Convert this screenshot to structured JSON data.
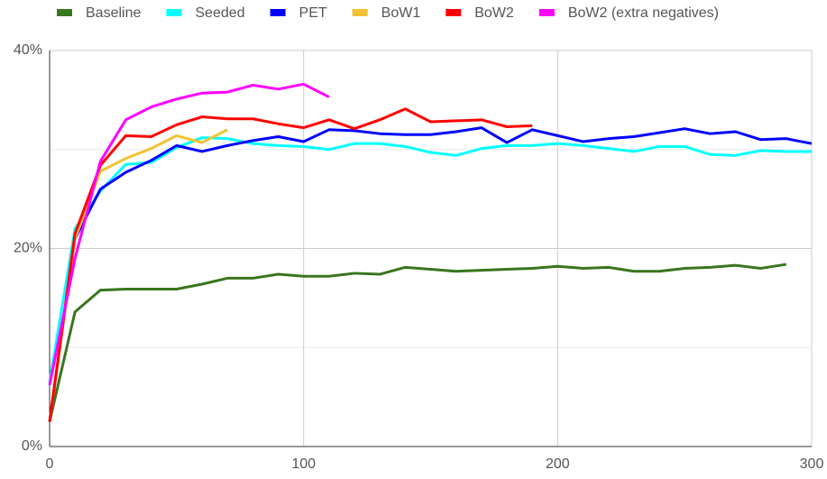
{
  "chart_data": {
    "type": "line",
    "x": [
      0,
      10,
      20,
      30,
      40,
      50,
      60,
      70,
      80,
      90,
      100,
      110,
      120,
      130,
      140,
      150,
      160,
      170,
      180,
      190,
      200,
      210,
      220,
      230,
      240,
      250,
      260,
      270,
      280,
      290,
      300
    ],
    "series": [
      {
        "name": "Baseline",
        "color": "#38761d",
        "values": [
          2.5,
          13.6,
          15.8,
          15.9,
          15.9,
          15.9,
          16.4,
          17.0,
          17.0,
          17.4,
          17.2,
          17.2,
          17.5,
          17.4,
          18.1,
          17.9,
          17.7,
          17.8,
          17.9,
          18.0,
          18.2,
          18.0,
          18.1,
          17.7,
          17.7,
          18.0,
          18.1,
          18.3,
          18.0,
          18.4,
          null
        ]
      },
      {
        "name": "Seeded",
        "color": "#00ffff",
        "values": [
          6.5,
          22.0,
          25.8,
          28.5,
          28.7,
          30.2,
          31.2,
          31.1,
          30.6,
          30.4,
          30.3,
          30.0,
          30.6,
          30.6,
          30.3,
          29.7,
          29.4,
          30.1,
          30.4,
          30.4,
          30.6,
          30.4,
          30.1,
          29.8,
          30.3,
          30.3,
          29.5,
          29.4,
          29.9,
          29.8,
          29.8
        ]
      },
      {
        "name": "PET",
        "color": "#0000ff",
        "values": [
          2.5,
          21.0,
          26.0,
          27.7,
          28.9,
          30.4,
          29.8,
          30.4,
          30.9,
          31.3,
          30.8,
          32.0,
          31.9,
          31.6,
          31.5,
          31.5,
          31.8,
          32.2,
          30.7,
          32.0,
          31.4,
          30.8,
          31.1,
          31.3,
          31.7,
          32.1,
          31.6,
          31.8,
          31.0,
          31.1,
          30.6
        ]
      },
      {
        "name": "BoW1",
        "color": "#f1c232",
        "values": [
          2.5,
          21.0,
          27.8,
          29.1,
          30.1,
          31.4,
          30.7,
          32.0,
          null,
          null,
          null,
          null,
          null,
          null,
          null,
          null,
          null,
          null,
          null,
          null,
          null,
          null,
          null,
          null,
          null,
          null,
          null,
          null,
          null,
          null,
          null
        ]
      },
      {
        "name": "BoW2",
        "color": "#ff0000",
        "values": [
          2.5,
          21.5,
          28.4,
          31.4,
          31.3,
          32.5,
          33.3,
          33.1,
          33.1,
          32.6,
          32.2,
          33.0,
          32.1,
          33.0,
          34.1,
          32.8,
          32.9,
          33.0,
          32.3,
          32.4,
          null,
          null,
          null,
          null,
          null,
          null,
          null,
          null,
          null,
          null,
          null
        ]
      },
      {
        "name": "BoW2 (extra negatives)",
        "color": "#ff00ff",
        "values": [
          6.2,
          19.0,
          28.8,
          33.0,
          34.3,
          35.1,
          35.7,
          35.8,
          36.5,
          36.1,
          36.6,
          35.3,
          null,
          null,
          null,
          null,
          null,
          null,
          null,
          null,
          null,
          null,
          null,
          null,
          null,
          null,
          null,
          null,
          null,
          null,
          null
        ]
      }
    ],
    "xlim": [
      0,
      300
    ],
    "xticks": [
      0,
      100,
      200,
      300
    ],
    "ylim": [
      0,
      40
    ],
    "yticks": [
      {
        "value": 0,
        "label": "0%"
      },
      {
        "value": 20,
        "label": "20%"
      },
      {
        "value": 40,
        "label": "40%"
      }
    ],
    "minor_yticks": [
      10,
      30
    ],
    "grid": true,
    "legend": "top"
  }
}
